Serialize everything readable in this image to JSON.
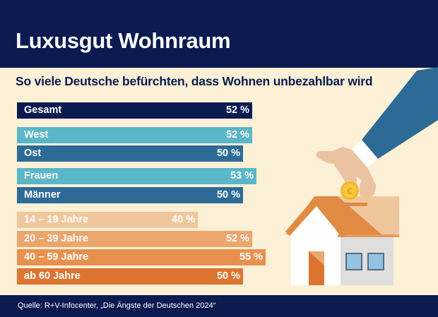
{
  "header": {
    "title": "Luxusgut Wohnraum"
  },
  "subtitle": "So viele Deutsche befürchten, dass Wohnen unbezahlbar wird",
  "footer": {
    "source": "Quelle: R+V-Infocenter, „Die Ängste der Deutschen 2024“"
  },
  "illustration": {
    "icons": [
      "hand-icon",
      "euro-coin-icon",
      "house-piggy-bank-icon"
    ]
  },
  "chart_data": {
    "type": "bar",
    "orientation": "horizontal",
    "title": "Luxusgut Wohnraum",
    "subtitle": "So viele Deutsche befürchten, dass Wohnen unbezahlbar wird",
    "unit": "%",
    "categories": [
      "Gesamt",
      "West",
      "Ost",
      "Frauen",
      "Männer",
      "14 – 19 Jahre",
      "20 – 39 Jahre",
      "40 – 59 Jahre",
      "ab 60 Jahre"
    ],
    "values": [
      52,
      52,
      50,
      53,
      50,
      40,
      52,
      55,
      50
    ],
    "value_labels": [
      "52 %",
      "52 %",
      "50 %",
      "53 %",
      "50 %",
      "40 %",
      "52 %",
      "55 %",
      "50 %"
    ],
    "groups": [
      "total",
      "region",
      "region",
      "gender",
      "gender",
      "age",
      "age",
      "age",
      "age"
    ],
    "colors": [
      "#0b1b50",
      "#5ab6c9",
      "#2d6b96",
      "#5ab6c9",
      "#2d6b96",
      "#f0c79d",
      "#eba66e",
      "#e8914f",
      "#dd7530"
    ],
    "xlim": [
      0,
      55
    ],
    "grid": false,
    "legend": "none",
    "source": "Quelle: R+V-Infocenter, „Die Ängste der Deutschen 2024“"
  }
}
